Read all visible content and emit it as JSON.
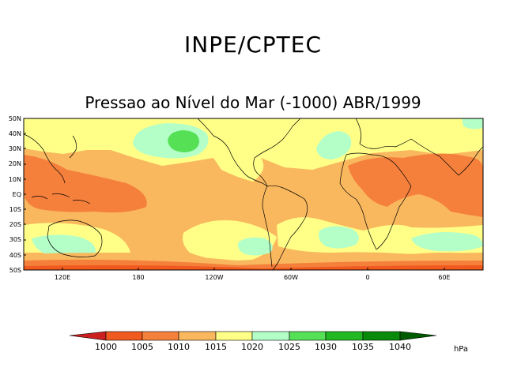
{
  "header": {
    "org": "INPE/CPTEC",
    "title": "Pressao ao Nível do Mar (-1000) ABR/1999"
  },
  "map": {
    "lat_labels": [
      "50N",
      "40N",
      "30N",
      "20N",
      "10N",
      "EQ",
      "10S",
      "20S",
      "30S",
      "40S",
      "50S"
    ],
    "lon_labels": [
      "120E",
      "180",
      "120W",
      "60W",
      "0",
      "60E"
    ],
    "colors": {
      "c1000": "#cc1f1f",
      "c1005": "#f05a1e",
      "c1010": "#f5803c",
      "c1015": "#f9b85e",
      "c1020": "#ffff88",
      "c1025": "#b4ffc8",
      "c1030": "#55e055",
      "c1035": "#22b822",
      "c1040": "#0a8a0a",
      "c1045": "#005a00"
    }
  },
  "colorbar": {
    "levels": [
      "1000",
      "1005",
      "1010",
      "1015",
      "1020",
      "1025",
      "1030",
      "1035",
      "1040"
    ],
    "unit": "hPa"
  }
}
